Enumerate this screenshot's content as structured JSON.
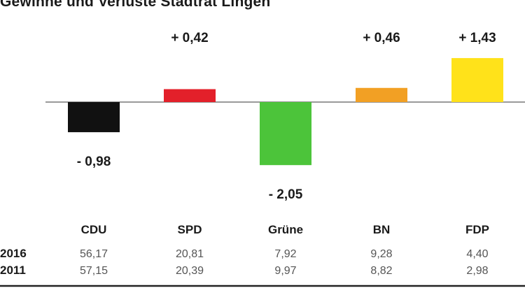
{
  "colors": {
    "CDU": "#111111",
    "SPD": "#e3202a",
    "Grüne": "#4cc43a",
    "BN": "#f2a024",
    "FDP": "#ffe21a",
    "baseline": "#9a9a9a",
    "rule": "#222222"
  },
  "chart_data": {
    "type": "bar",
    "title": "Gewinne und Verluste Stadtrat Lingen",
    "categories": [
      "CDU",
      "SPD",
      "Grüne",
      "BN",
      "FDP"
    ],
    "values": [
      -0.98,
      0.42,
      -2.05,
      0.46,
      1.43
    ],
    "value_labels": [
      "- 0,98",
      "+ 0,42",
      "- 2,05",
      "+ 0,46",
      "+ 1,43"
    ],
    "baseline": 0,
    "grid": false,
    "axes_visible": false,
    "legend": "none"
  },
  "table": {
    "years": [
      "2016",
      "2011"
    ],
    "rows": [
      [
        "56,17",
        "20,81",
        "7,92",
        "9,28",
        "4,40"
      ],
      [
        "57,15",
        "20,39",
        "9,97",
        "8,82",
        "2,98"
      ]
    ]
  }
}
